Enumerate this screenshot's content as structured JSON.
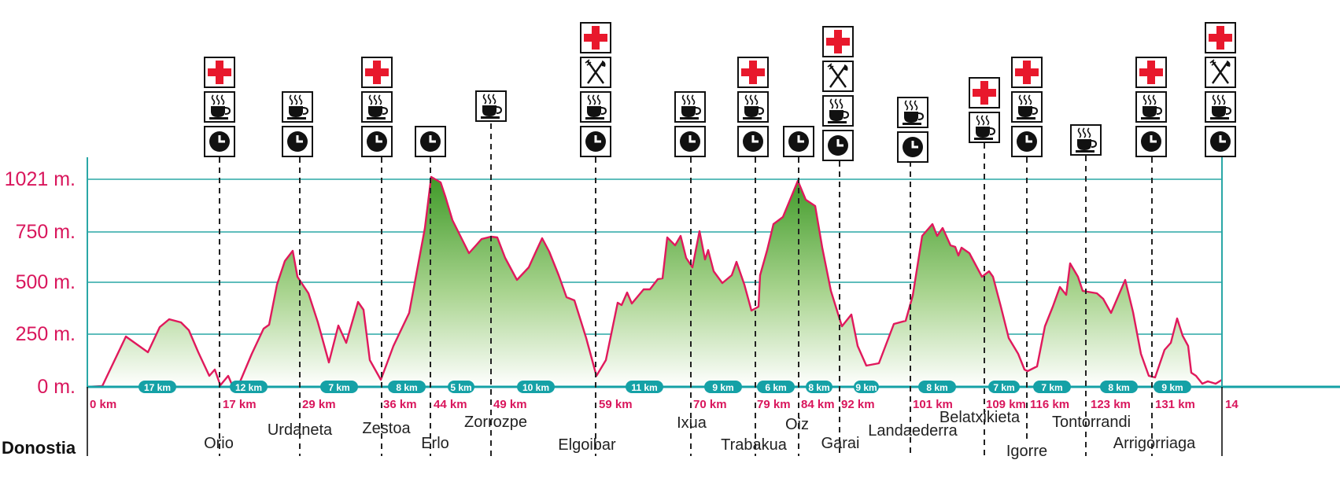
{
  "colors": {
    "profile_line": "#e0195c",
    "fill_top": "#3f9a28",
    "fill_bottom": "#ffffff",
    "grid": "#2aa7a6",
    "label": "#d9165c",
    "segment_badge": "#15a1a6",
    "icon_red": "#e8182c"
  },
  "axis": {
    "labels": [
      "1021 m.",
      "750 m.",
      "500 m.",
      "250 m.",
      "0 m."
    ],
    "values": [
      1021,
      750,
      500,
      250,
      0
    ]
  },
  "start_label": "Donostia",
  "segments": [
    "17 km",
    "12 km",
    "7 km",
    "8 km",
    "5 km",
    "10 km",
    "11 km",
    "9 km",
    "6 km",
    "8 km",
    "9 km",
    "8 km",
    "7 km",
    "7 km",
    "8 km",
    "9   km"
  ],
  "km_marks": [
    "0 km",
    "17 km",
    "29 km",
    "36 km",
    "44 km",
    "49 km",
    "59 km",
    "70 km",
    "79 km",
    "84 km",
    "92 km",
    "101 km",
    "109 km",
    "116 km",
    "123 km",
    "131 km",
    "14"
  ],
  "places": [
    "Orio",
    "Urdaneta",
    "Zestoa",
    "Erlo",
    "Zorrozpe",
    "Elgoibar",
    "Ixua",
    "Trabakua",
    "Oiz",
    "Garai",
    "Landaederra",
    "Belatxikieta",
    "Igorre",
    "Tontorrandi",
    "Arrigorriaga"
  ],
  "checkpoints": [
    {
      "place": "Orio",
      "icons": [
        "first-aid-icon",
        "coffee-icon",
        "clock-icon"
      ]
    },
    {
      "place": "Urdaneta",
      "icons": [
        "coffee-icon",
        "clock-icon"
      ]
    },
    {
      "place": "Zestoa",
      "icons": [
        "first-aid-icon",
        "coffee-icon",
        "clock-icon"
      ]
    },
    {
      "place": "Erlo",
      "icons": [
        "clock-icon"
      ]
    },
    {
      "place": "Zorrozpe",
      "icons": [
        "coffee-icon"
      ]
    },
    {
      "place": "Elgoibar",
      "icons": [
        "first-aid-icon",
        "fork-knife-icon",
        "coffee-icon",
        "clock-icon"
      ]
    },
    {
      "place": "Ixua",
      "icons": [
        "coffee-icon",
        "clock-icon"
      ]
    },
    {
      "place": "Trabakua",
      "icons": [
        "first-aid-icon",
        "coffee-icon",
        "clock-icon"
      ]
    },
    {
      "place": "Oiz",
      "icons": [
        "clock-icon"
      ]
    },
    {
      "place": "Garai",
      "icons": [
        "first-aid-icon",
        "fork-knife-icon",
        "coffee-icon",
        "clock-icon"
      ]
    },
    {
      "place": "Landaederra",
      "icons": [
        "coffee-icon",
        "clock-icon"
      ]
    },
    {
      "place": "Belatxikieta",
      "icons": [
        "first-aid-icon",
        "coffee-icon"
      ]
    },
    {
      "place": "Igorre",
      "icons": [
        "first-aid-icon",
        "coffee-icon",
        "clock-icon"
      ]
    },
    {
      "place": "Tontorrandi",
      "icons": [
        "coffee-icon"
      ]
    },
    {
      "place": "Arrigorriaga",
      "icons": [
        "first-aid-icon",
        "coffee-icon",
        "clock-icon"
      ]
    },
    {
      "place": "",
      "icons": [
        "first-aid-icon",
        "fork-knife-icon",
        "coffee-icon",
        "clock-icon"
      ]
    }
  ]
}
